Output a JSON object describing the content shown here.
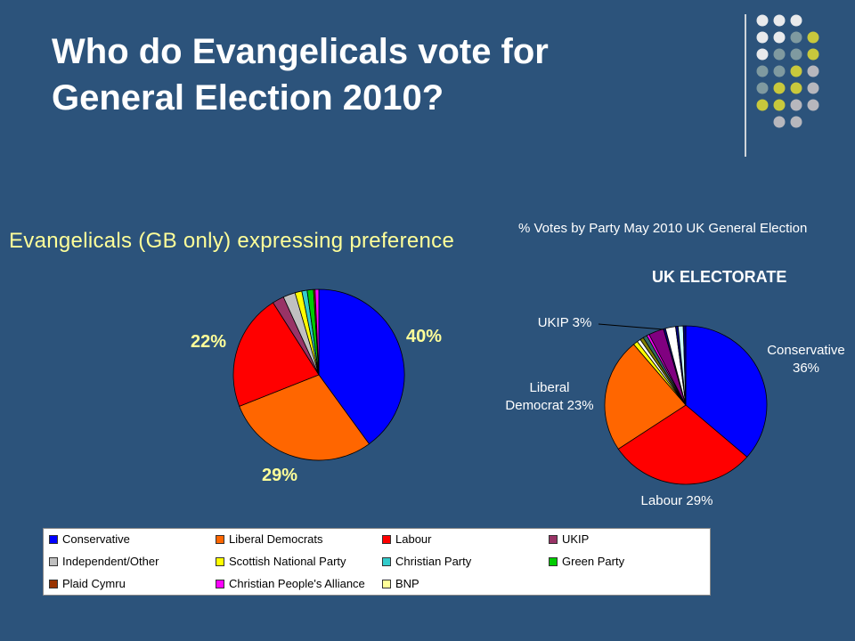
{
  "slide": {
    "title_line1": "Who do Evangelicals vote for",
    "title_line2": "General Election 2010?"
  },
  "colors": {
    "background": "#2c537b",
    "title": "#ffffff",
    "left_title": "#ffff99",
    "label_yellow": "#ffff99",
    "decor_dots": [
      "#e9eaec",
      "#7f9aa0",
      "#c8c83c",
      "#b7b7bd"
    ]
  },
  "chart_data": [
    {
      "type": "pie",
      "title": "Evangelicals (GB only) expressing preference",
      "slices": [
        {
          "name": "Conservative",
          "value": 40,
          "color": "#0000ff",
          "label": "40%"
        },
        {
          "name": "Liberal Democrats",
          "value": 29,
          "color": "#ff6600",
          "label": "29%"
        },
        {
          "name": "Labour",
          "value": 22,
          "color": "#ff0000",
          "label": "22%"
        },
        {
          "name": "UKIP",
          "value": 2.2,
          "color": "#993366",
          "label": ""
        },
        {
          "name": "Independent/Other",
          "value": 2.3,
          "color": "#c0c0c0",
          "label": ""
        },
        {
          "name": "Scottish National Party",
          "value": 1.3,
          "color": "#ffff00",
          "label": ""
        },
        {
          "name": "Christian Party",
          "value": 1.0,
          "color": "#33cccc",
          "label": ""
        },
        {
          "name": "Green Party",
          "value": 1.2,
          "color": "#00cc00",
          "label": ""
        },
        {
          "name": "Plaid Cymru",
          "value": 0.3,
          "color": "#993300",
          "label": ""
        },
        {
          "name": "Christian People's Alliance",
          "value": 0.7,
          "color": "#ff00ff",
          "label": ""
        }
      ]
    },
    {
      "type": "pie",
      "title": "% Votes by Party May 2010 UK General Election",
      "subtitle": "UK ELECTORATE",
      "slices": [
        {
          "name": "Conservative",
          "value": 36,
          "color": "#0000ff",
          "label_lines": [
            "Conservative",
            "36%"
          ]
        },
        {
          "name": "Labour",
          "value": 29,
          "color": "#ff0000",
          "label_lines": [
            "Labour 29%"
          ]
        },
        {
          "name": "Liberal Democrat",
          "value": 23,
          "color": "#ff6600",
          "label_lines": [
            "Liberal",
            "Democrat 23%"
          ]
        },
        {
          "name": "Other",
          "value": 0.9,
          "color": "#ffff00",
          "label_lines": []
        },
        {
          "name": "Other",
          "value": 0.7,
          "color": "#ffffff",
          "label_lines": []
        },
        {
          "name": "Other",
          "value": 0.7,
          "color": "#808000",
          "label_lines": []
        },
        {
          "name": "Other",
          "value": 0.8,
          "color": "#336666",
          "label_lines": []
        },
        {
          "name": "Other",
          "value": 0.5,
          "color": "#ff00ff",
          "label_lines": []
        },
        {
          "name": "UKIP",
          "value": 3,
          "color": "#800080",
          "label_lines": [
            "UKIP 3%"
          ]
        },
        {
          "name": "Other",
          "value": 0.4,
          "color": "#000080",
          "label_lines": []
        },
        {
          "name": "Other",
          "value": 2.0,
          "color": "#ffffff",
          "label_lines": []
        },
        {
          "name": "Other",
          "value": 0.5,
          "color": "#000080",
          "label_lines": []
        },
        {
          "name": "Other",
          "value": 1.0,
          "color": "#ccffff",
          "label_lines": []
        },
        {
          "name": "Other",
          "value": 0.5,
          "color": "#000080",
          "label_lines": []
        }
      ]
    }
  ],
  "legend": [
    {
      "label": "Conservative",
      "color": "#0000ff"
    },
    {
      "label": "Liberal Democrats",
      "color": "#ff6600"
    },
    {
      "label": "Labour",
      "color": "#ff0000"
    },
    {
      "label": "UKIP",
      "color": "#993366"
    },
    {
      "label": "Independent/Other",
      "color": "#c0c0c0"
    },
    {
      "label": "Scottish National Party",
      "color": "#ffff00"
    },
    {
      "label": "Christian Party",
      "color": "#33cccc"
    },
    {
      "label": "Green Party",
      "color": "#00cc00"
    },
    {
      "label": "Plaid Cymru",
      "color": "#993300"
    },
    {
      "label": "Christian People's Alliance",
      "color": "#ff00ff"
    },
    {
      "label": "BNP",
      "color": "#ffff99"
    }
  ]
}
